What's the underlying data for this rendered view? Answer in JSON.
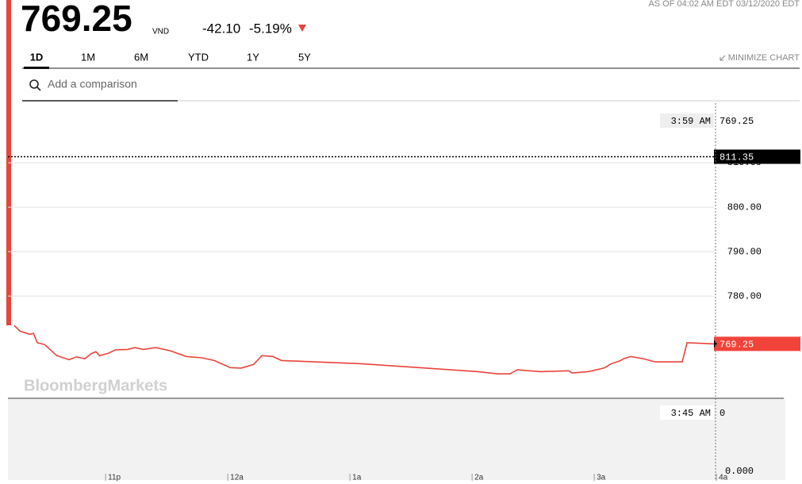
{
  "header": {
    "price": "769.25",
    "currency": "VND",
    "change": "-42.10",
    "change_percent": "-5.19%",
    "as_of": "AS OF 04:02 AM EDT 03/12/2020 EDT"
  },
  "tabs": [
    "1D",
    "1M",
    "6M",
    "YTD",
    "1Y",
    "5Y"
  ],
  "active_tab": 0,
  "minimize": "MINIMIZE CHART",
  "search_placeholder": "Add a comparison",
  "chart_data": {
    "type": "line",
    "color": "#e8443a",
    "watermark": "BloombergMarkets",
    "x": [
      22.25,
      22.3,
      22.38,
      22.41,
      22.44,
      22.5,
      22.6,
      22.7,
      22.76,
      22.83,
      22.88,
      22.92,
      22.95,
      23.02,
      23.08,
      23.18,
      23.24,
      23.31,
      23.41,
      23.53,
      23.66,
      23.79,
      23.89,
      24.02,
      24.11,
      24.21,
      24.28,
      24.37,
      24.44,
      25.08,
      26.05,
      26.21,
      26.31,
      26.37,
      26.56,
      26.79,
      26.82,
      26.95,
      27.08,
      27.14,
      27.21,
      27.24,
      27.3,
      27.4,
      27.5,
      27.72,
      27.76,
      27.98
    ],
    "values": [
      773.4,
      772.1,
      771.4,
      771.6,
      769.5,
      769.1,
      766.6,
      765.7,
      766.3,
      765.9,
      767.0,
      767.5,
      766.6,
      767.1,
      767.9,
      768.0,
      768.4,
      768.0,
      768.4,
      767.7,
      766.4,
      766.1,
      765.5,
      763.9,
      763.8,
      764.6,
      766.6,
      766.4,
      765.5,
      764.8,
      763.0,
      762.5,
      762.5,
      763.4,
      763.0,
      763.2,
      762.7,
      763.0,
      763.8,
      764.8,
      765.4,
      765.9,
      766.4,
      765.9,
      765.2,
      765.2,
      769.5,
      769.25
    ],
    "xlim": [
      22.2,
      27.98
    ],
    "ylim": [
      757,
      823.4
    ],
    "xticks": [
      {
        "value": 23,
        "label": "11p"
      },
      {
        "value": 24,
        "label": "12a"
      },
      {
        "value": 25,
        "label": "1a"
      },
      {
        "value": 26,
        "label": "2a"
      },
      {
        "value": 27,
        "label": "3a"
      },
      {
        "value": 28,
        "label": "4a"
      }
    ],
    "yticks": [
      {
        "value": 780,
        "label": "780.00"
      },
      {
        "value": 790,
        "label": "790.00"
      },
      {
        "value": 800,
        "label": "800.00"
      },
      {
        "value": 810,
        "label": "810.00"
      }
    ],
    "previous_close": {
      "value": 811.35,
      "label": "811.35"
    },
    "last": {
      "value": 769.25,
      "label": "769.25"
    },
    "crosshair": {
      "time": "3:59 AM",
      "value": "769.25"
    },
    "volume_crosshair": {
      "time": "3:45 AM",
      "value": "0"
    },
    "volume_axis_label": "0.000"
  }
}
